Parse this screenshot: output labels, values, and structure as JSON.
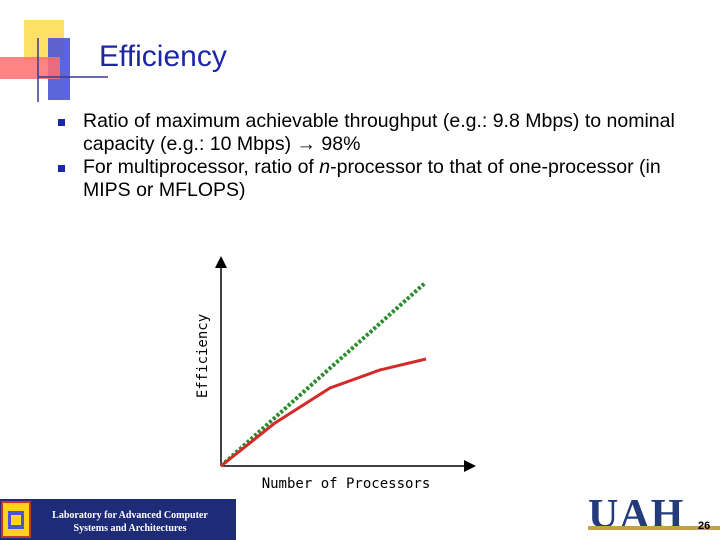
{
  "slide": {
    "title": "Efficiency",
    "bullets": [
      {
        "text": "Ratio of maximum achievable throughput (e.g.: 9.8 Mbps) to nominal capacity (e.g.: 10 Mbps) → 98%"
      },
      {
        "prefix": "For multiprocessor, ratio of ",
        "italic": "n",
        "suffix": "-processor to that of one-processor (in MIPS or MFLOPS)"
      }
    ],
    "page_number": "26"
  },
  "diagram": {
    "y_axis_label": "Efficiency",
    "x_axis_label": "Number of Processors",
    "ideal_line_color": "#2e8b2e",
    "actual_line_color": "#d42a2a"
  },
  "footer": {
    "lab_line1": "Laboratory for Advanced Computer",
    "lab_line2": "Systems and Architectures",
    "uah_logo": "UAH"
  },
  "colors": {
    "title": "#1c27a6",
    "bullet": "#1c27a6",
    "deco_yellow": "#ffd21c",
    "deco_blue": "#3c47c8",
    "deco_red": "#e52a2a"
  }
}
